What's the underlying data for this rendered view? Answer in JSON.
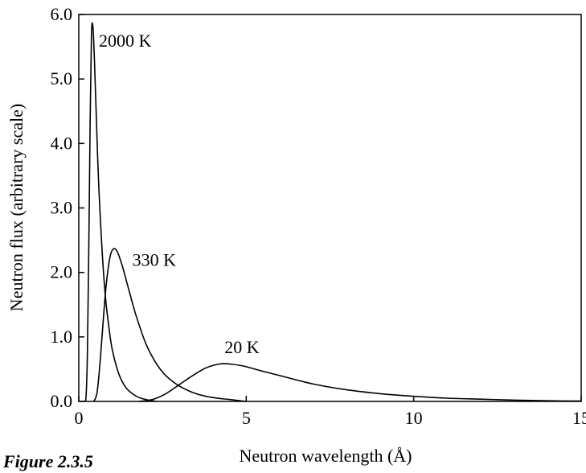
{
  "chart_data": {
    "type": "line",
    "title": "",
    "xlabel": "Neutron wavelength (Å)",
    "ylabel": "Neutron flux (arbitrary scale)",
    "xlim": [
      0,
      15
    ],
    "ylim": [
      0,
      6
    ],
    "x_ticks": [
      0,
      5,
      10,
      15
    ],
    "x_tick_labels": [
      "0",
      "5",
      "10",
      "15"
    ],
    "y_ticks": [
      0,
      1,
      2,
      3,
      4,
      5,
      6
    ],
    "y_tick_labels": [
      "0.0",
      "1.0",
      "2.0",
      "3.0",
      "4.0",
      "5.0",
      "6.0"
    ],
    "grid": false,
    "legend": "none",
    "caption": "Figure 2.3.5",
    "series": [
      {
        "name": "2000 K",
        "x": [
          0.18,
          0.22,
          0.26,
          0.3,
          0.34,
          0.38,
          0.42,
          0.46,
          0.5,
          0.55,
          0.6,
          0.7,
          0.8,
          0.9,
          1.0,
          1.2,
          1.4,
          1.6,
          1.8,
          2.0,
          2.3
        ],
        "y": [
          0.0,
          0.1,
          0.8,
          2.4,
          4.4,
          5.7,
          5.82,
          5.4,
          4.8,
          4.0,
          3.3,
          2.3,
          1.6,
          1.15,
          0.8,
          0.42,
          0.22,
          0.12,
          0.06,
          0.03,
          0.0
        ]
      },
      {
        "name": "330 K",
        "x": [
          0.45,
          0.55,
          0.65,
          0.75,
          0.85,
          0.95,
          1.05,
          1.15,
          1.3,
          1.5,
          1.7,
          2.0,
          2.3,
          2.6,
          3.0,
          3.5,
          4.0,
          4.5,
          5.0
        ],
        "y": [
          0.0,
          0.15,
          0.7,
          1.4,
          1.95,
          2.28,
          2.37,
          2.32,
          2.1,
          1.72,
          1.35,
          0.9,
          0.6,
          0.4,
          0.24,
          0.12,
          0.06,
          0.03,
          0.0
        ]
      },
      {
        "name": "20 K",
        "x": [
          1.8,
          2.2,
          2.6,
          3.0,
          3.4,
          3.8,
          4.2,
          4.5,
          4.9,
          5.4,
          6.0,
          7.0,
          8.0,
          9.0,
          10.0,
          11.0,
          12.0,
          13.0,
          14.0,
          15.0
        ],
        "y": [
          0.0,
          0.03,
          0.12,
          0.26,
          0.4,
          0.52,
          0.58,
          0.58,
          0.55,
          0.48,
          0.4,
          0.27,
          0.18,
          0.12,
          0.08,
          0.05,
          0.035,
          0.02,
          0.01,
          0.005
        ]
      }
    ],
    "annotations": [
      {
        "text": "2000 K",
        "x": 0.6,
        "y": 5.5
      },
      {
        "text": "330 K",
        "x": 1.6,
        "y": 2.1
      },
      {
        "text": "20 K",
        "x": 4.35,
        "y": 0.75
      }
    ],
    "colors": {
      "line": "#000000",
      "background": "#ffffff"
    }
  }
}
